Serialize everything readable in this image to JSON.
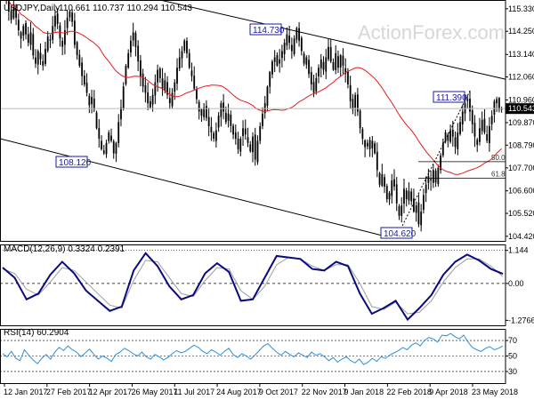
{
  "header": {
    "symbol": "USDJPY,Daily",
    "ohlc": "110.661 110.737 110.294 110.543",
    "watermark": "ActionForex.com"
  },
  "colors": {
    "candle": "#000000",
    "ma": "#e8191c",
    "channel": "#000000",
    "macd_line": "#0a0a80",
    "macd_signal": "#9c9c9c",
    "rsi_line": "#2f8fd8",
    "label_box": "#1a1aa0",
    "price_tag_bg": "#000000",
    "price_tag_fg": "#ffffff"
  },
  "chart_data": [
    {
      "type": "candlestick",
      "title": "USDJPY,Daily",
      "ohlc_last": {
        "open": 110.661,
        "high": 110.737,
        "low": 110.294,
        "close": 110.543
      },
      "y_ticks": [
        104.42,
        105.52,
        106.6,
        107.7,
        108.79,
        109.87,
        110.96,
        112.06,
        113.14,
        114.25,
        115.33
      ],
      "y_tick_labels": [
        "104.420",
        "105.520",
        "106.600",
        "107.700",
        "108.790",
        "109.870",
        "110.960",
        "112.060",
        "113.140",
        "114.250",
        "115.330"
      ],
      "ylim": [
        104.2,
        115.75
      ],
      "x_labels": [
        "12 Jan 2017",
        "27 Feb 2017",
        "12 Apr 2017",
        "26 May 2017",
        "11 Jul 2017",
        "24 Aug 2017",
        "9 Oct 2017",
        "22 Nov 2017",
        "9 Jan 2018",
        "22 Feb 2018",
        "9 Apr 2018",
        "23 May 2018"
      ],
      "closes": [
        116.2,
        115.8,
        115.2,
        114.8,
        115.4,
        114.9,
        114.3,
        113.9,
        114.5,
        114.1,
        113.7,
        114.2,
        113.1,
        112.7,
        113.3,
        112.9,
        112.6,
        113.4,
        114.0,
        113.8,
        114.5,
        115.0,
        114.6,
        113.9,
        113.5,
        114.3,
        114.9,
        115.2,
        114.7,
        113.6,
        113.1,
        112.6,
        112.1,
        111.7,
        111.3,
        110.7,
        111.1,
        110.5,
        109.6,
        109.1,
        108.6,
        108.4,
        108.9,
        109.4,
        109.0,
        108.4,
        108.9,
        109.9,
        110.6,
        111.6,
        112.6,
        113.2,
        113.8,
        114.2,
        113.5,
        112.8,
        112.1,
        111.6,
        111.3,
        110.8,
        110.6,
        111.2,
        111.8,
        112.4,
        112.0,
        111.5,
        111.9,
        111.2,
        110.8,
        111.3,
        111.8,
        112.5,
        113.0,
        113.3,
        113.8,
        113.2,
        112.5,
        112.1,
        111.5,
        111.0,
        110.4,
        110.2,
        110.6,
        110.1,
        109.7,
        109.4,
        109.1,
        109.5,
        110.2,
        110.8,
        110.4,
        109.9,
        110.3,
        109.7,
        109.3,
        109.1,
        108.6,
        109.1,
        109.6,
        109.3,
        108.9,
        108.5,
        109.2,
        108.1,
        109.0,
        109.7,
        110.3,
        110.8,
        111.6,
        112.3,
        112.8,
        113.0,
        112.6,
        112.9,
        113.3,
        113.7,
        114.1,
        113.7,
        113.3,
        113.9,
        114.4,
        113.8,
        113.3,
        112.7,
        113.0,
        112.2,
        111.7,
        111.3,
        112.0,
        112.5,
        112.9,
        112.4,
        113.0,
        113.5,
        112.8,
        112.4,
        113.2,
        112.5,
        113.1,
        112.6,
        112.2,
        111.7,
        110.9,
        110.5,
        111.2,
        110.4,
        109.6,
        109.1,
        108.7,
        108.9,
        108.6,
        109.0,
        108.4,
        107.6,
        106.9,
        107.4,
        106.8,
        106.2,
        106.5,
        107.1,
        106.8,
        106.0,
        105.4,
        105.9,
        106.7,
        106.2,
        106.6,
        106.1,
        105.6,
        105.9,
        105.0,
        105.6,
        106.4,
        106.9,
        107.3,
        107.1,
        107.6,
        107.0,
        107.7,
        108.3,
        108.9,
        109.4,
        109.0,
        109.5,
        109.2,
        108.7,
        109.4,
        109.9,
        110.4,
        110.8,
        111.0,
        110.4,
        109.8,
        109.2,
        108.8,
        109.6,
        110.0,
        109.4,
        109.0,
        109.7,
        110.2,
        110.9,
        111.0,
        110.5,
        110.54
      ],
      "annotations": [
        "108.120",
        "114.730",
        "111.390",
        "104.620"
      ],
      "fib_labels": [
        "50.0",
        "61.8"
      ],
      "current_price": "110.543",
      "moving_average": "red line"
    },
    {
      "type": "line",
      "title": "MACD(12,26,9) 0.3324 0.2391",
      "y_ticks": [
        1.144,
        0.0,
        -1.2766
      ],
      "y_tick_labels": [
        "1.144",
        "0.00",
        "-1.2766"
      ],
      "ylim": [
        -1.45,
        1.35
      ],
      "series": [
        {
          "name": "MACD",
          "values": [
            0.55,
            0.2,
            -0.55,
            -0.35,
            0.3,
            0.75,
            0.35,
            -0.25,
            -0.6,
            -0.95,
            -0.8,
            0.45,
            1.05,
            0.6,
            -0.1,
            -0.55,
            -0.4,
            0.35,
            0.7,
            0.4,
            -0.6,
            -0.55,
            0.2,
            0.95,
            0.9,
            0.85,
            0.5,
            0.45,
            0.75,
            0.6,
            -0.35,
            -1.05,
            -0.85,
            -0.6,
            -1.25,
            -0.85,
            -0.4,
            0.3,
            0.75,
            1.0,
            0.8,
            0.5,
            0.33
          ]
        },
        {
          "name": "Signal",
          "values": [
            0.5,
            0.35,
            -0.2,
            -0.4,
            0.05,
            0.55,
            0.45,
            0.05,
            -0.35,
            -0.75,
            -0.85,
            0.1,
            0.8,
            0.75,
            0.2,
            -0.35,
            -0.45,
            0.1,
            0.55,
            0.5,
            -0.25,
            -0.55,
            -0.1,
            0.65,
            0.9,
            0.85,
            0.6,
            0.45,
            0.65,
            0.65,
            0.0,
            -0.8,
            -0.9,
            -0.65,
            -1.05,
            -1.0,
            -0.6,
            0.05,
            0.55,
            0.85,
            0.85,
            0.6,
            0.24
          ]
        }
      ]
    },
    {
      "type": "line",
      "title": "RSI(14) 60.2904",
      "y_ticks": [
        70,
        50,
        30
      ],
      "y_tick_labels": [
        "70",
        "50",
        "30"
      ],
      "ylim": [
        15,
        85
      ],
      "series": [
        {
          "name": "RSI",
          "values": [
            53,
            49,
            56,
            47,
            44,
            58,
            51,
            45,
            40,
            47,
            52,
            46,
            55,
            61,
            57,
            63,
            58,
            55,
            49,
            54,
            59,
            52,
            46,
            50,
            47,
            43,
            52,
            55,
            60,
            57,
            53,
            50,
            55,
            49,
            46,
            52,
            49,
            45,
            48,
            53,
            57,
            54,
            56,
            60,
            64,
            61,
            56,
            53,
            58,
            55,
            51,
            56,
            60,
            52,
            48,
            53,
            50,
            46,
            51,
            57,
            63,
            66,
            60,
            55,
            51,
            56,
            52,
            49,
            54,
            51,
            48,
            55,
            51,
            53,
            49,
            44,
            48,
            42,
            46,
            49,
            44,
            41,
            46,
            39,
            42,
            47,
            43,
            49,
            47,
            51,
            54,
            57,
            61,
            58,
            64,
            67,
            63,
            70,
            74,
            72,
            68,
            77,
            76,
            79,
            75,
            72,
            77,
            68,
            61,
            58,
            56,
            60,
            62,
            58,
            60,
            63
          ]
        }
      ]
    }
  ]
}
